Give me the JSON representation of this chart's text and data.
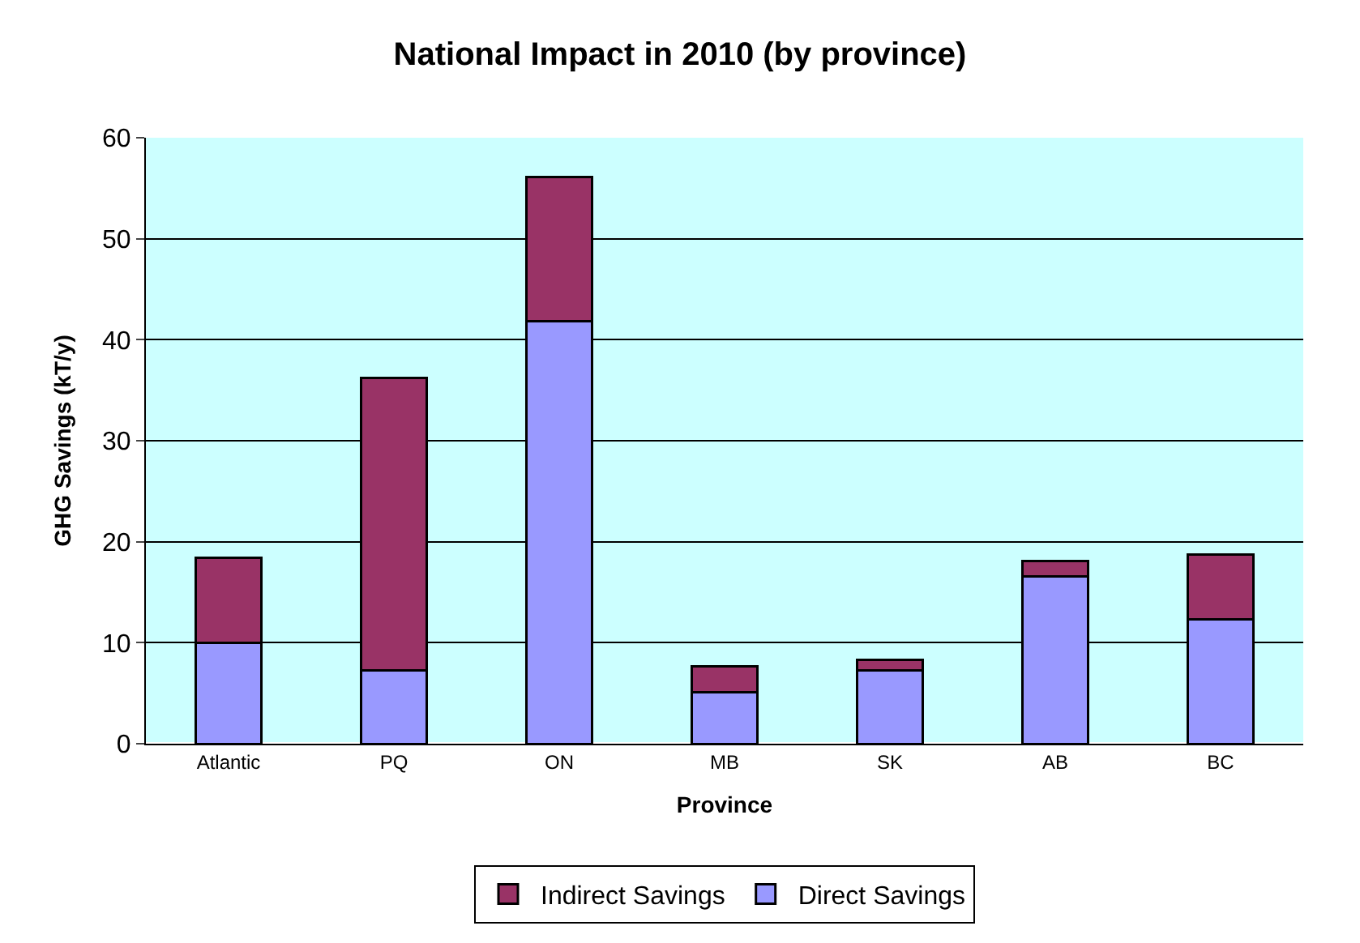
{
  "chart_data": {
    "type": "bar",
    "stacked": true,
    "title": "National Impact in 2010 (by province)",
    "xlabel": "Province",
    "ylabel": "GHG Savings (kT/y)",
    "categories": [
      "Atlantic",
      "PQ",
      "ON",
      "MB",
      "SK",
      "AB",
      "BC"
    ],
    "series": [
      {
        "name": "Direct Savings",
        "color": "#9999ff",
        "values": [
          10.0,
          7.3,
          41.8,
          5.1,
          7.3,
          16.6,
          12.3
        ]
      },
      {
        "name": "Indirect Savings",
        "color": "#993366",
        "values": [
          8.4,
          28.9,
          14.3,
          2.6,
          1.0,
          1.5,
          6.4
        ]
      }
    ],
    "ylim": [
      0,
      60
    ],
    "yticks": [
      0,
      10,
      20,
      30,
      40,
      50,
      60
    ],
    "grid": "y",
    "legend": "bottom"
  }
}
